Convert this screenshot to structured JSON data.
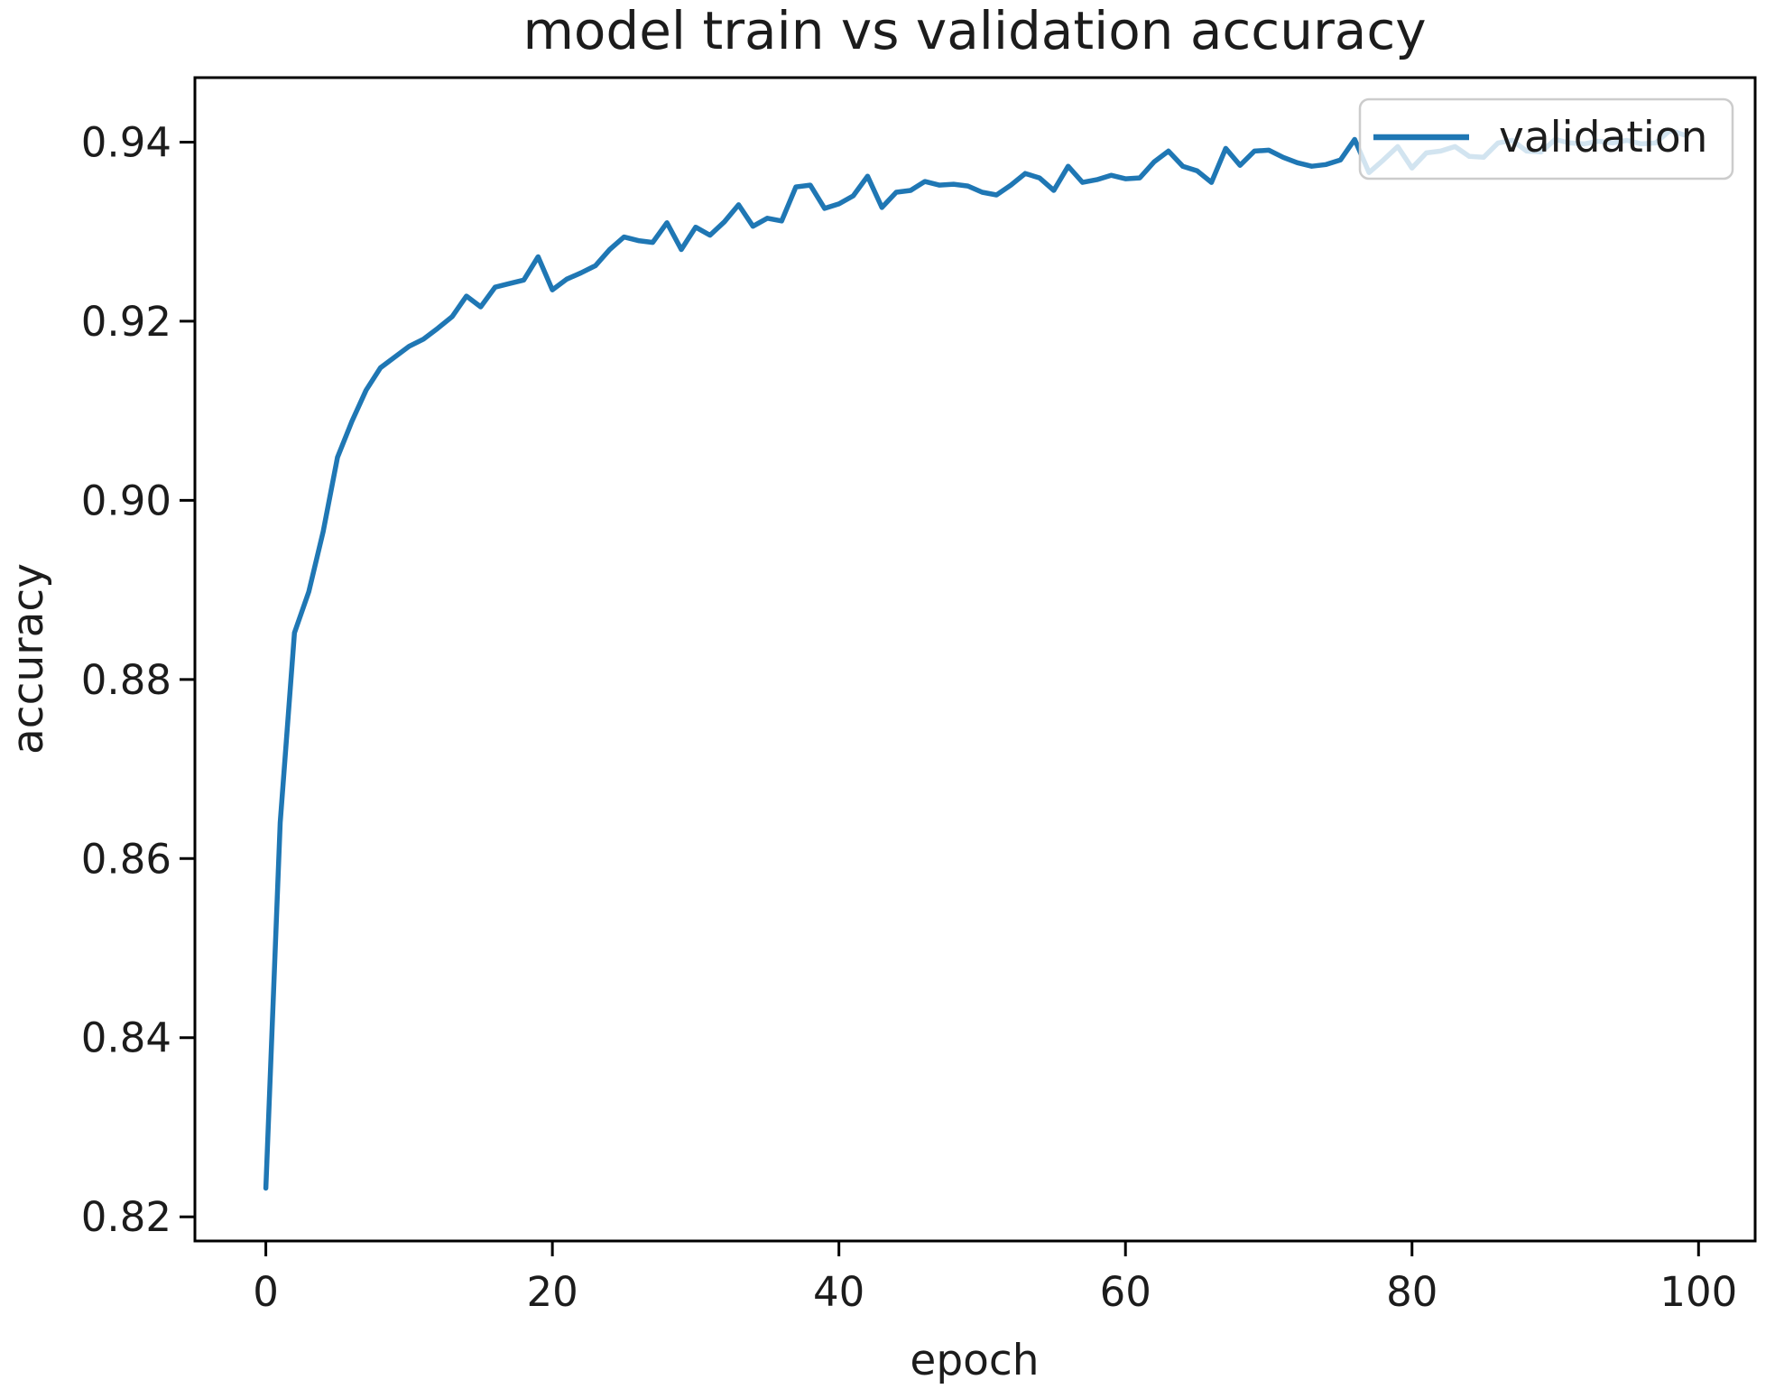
{
  "figure": {
    "background": "#ffffff"
  },
  "chart_data": {
    "type": "line",
    "title": "model train vs validation accuracy",
    "xlabel": "epoch",
    "ylabel": "accuracy",
    "grid": false,
    "xlim": [
      -4.95,
      103.95
    ],
    "ylim": [
      0.8173,
      0.9472
    ],
    "x_ticks": [
      0,
      20,
      40,
      60,
      80,
      100
    ],
    "x_tick_labels": [
      "0",
      "20",
      "40",
      "60",
      "80",
      "100"
    ],
    "y_ticks": [
      0.82,
      0.84,
      0.86,
      0.88,
      0.9,
      0.92,
      0.94
    ],
    "y_tick_labels": [
      "0.82",
      "0.84",
      "0.86",
      "0.88",
      "0.90",
      "0.92",
      "0.94"
    ],
    "legend": {
      "position": "upper right",
      "entries": [
        {
          "label": "validation",
          "color": "#1f77b4"
        }
      ]
    },
    "series": [
      {
        "name": "validation",
        "color": "#1f77b4",
        "x_note": "epoch index, 0 through 99, step 1",
        "x_start": 0,
        "x_step": 1,
        "values": [
          0.8232,
          0.864,
          0.8852,
          0.8898,
          0.8965,
          0.9048,
          0.9088,
          0.9123,
          0.9148,
          0.916,
          0.9172,
          0.918,
          0.9192,
          0.9205,
          0.9228,
          0.9216,
          0.9238,
          0.9242,
          0.9246,
          0.9272,
          0.9235,
          0.9247,
          0.9254,
          0.9262,
          0.928,
          0.9294,
          0.929,
          0.9288,
          0.931,
          0.928,
          0.9305,
          0.9296,
          0.9311,
          0.933,
          0.9306,
          0.9315,
          0.9312,
          0.935,
          0.9352,
          0.9326,
          0.9331,
          0.934,
          0.9362,
          0.9327,
          0.9344,
          0.9346,
          0.9356,
          0.9352,
          0.9353,
          0.9351,
          0.9344,
          0.9341,
          0.9352,
          0.9365,
          0.936,
          0.9346,
          0.9373,
          0.9355,
          0.9358,
          0.9363,
          0.9359,
          0.936,
          0.9378,
          0.939,
          0.9373,
          0.9368,
          0.9355,
          0.9393,
          0.9374,
          0.939,
          0.9391,
          0.9383,
          0.9377,
          0.9373,
          0.9375,
          0.938,
          0.9403,
          0.9366,
          0.938,
          0.9395,
          0.9371,
          0.9388,
          0.939,
          0.9395,
          0.9384,
          0.9383,
          0.9399,
          0.9402,
          0.939,
          0.9389,
          0.9403,
          0.9399,
          0.9398,
          0.9401,
          0.9399,
          0.9402,
          0.9398,
          0.9399,
          0.9413,
          0.9408
        ]
      }
    ],
    "style": {
      "line_color": "#1f77b4",
      "line_width": 5.5,
      "spine_color": "#000000",
      "spine_width": 3,
      "tick_length": 17,
      "tick_width": 3,
      "text_color": "#1c1c1c",
      "legend_border_color": "#cccccc",
      "legend_face_color": "#ffffff",
      "legend_face_alpha": 0.8
    }
  }
}
